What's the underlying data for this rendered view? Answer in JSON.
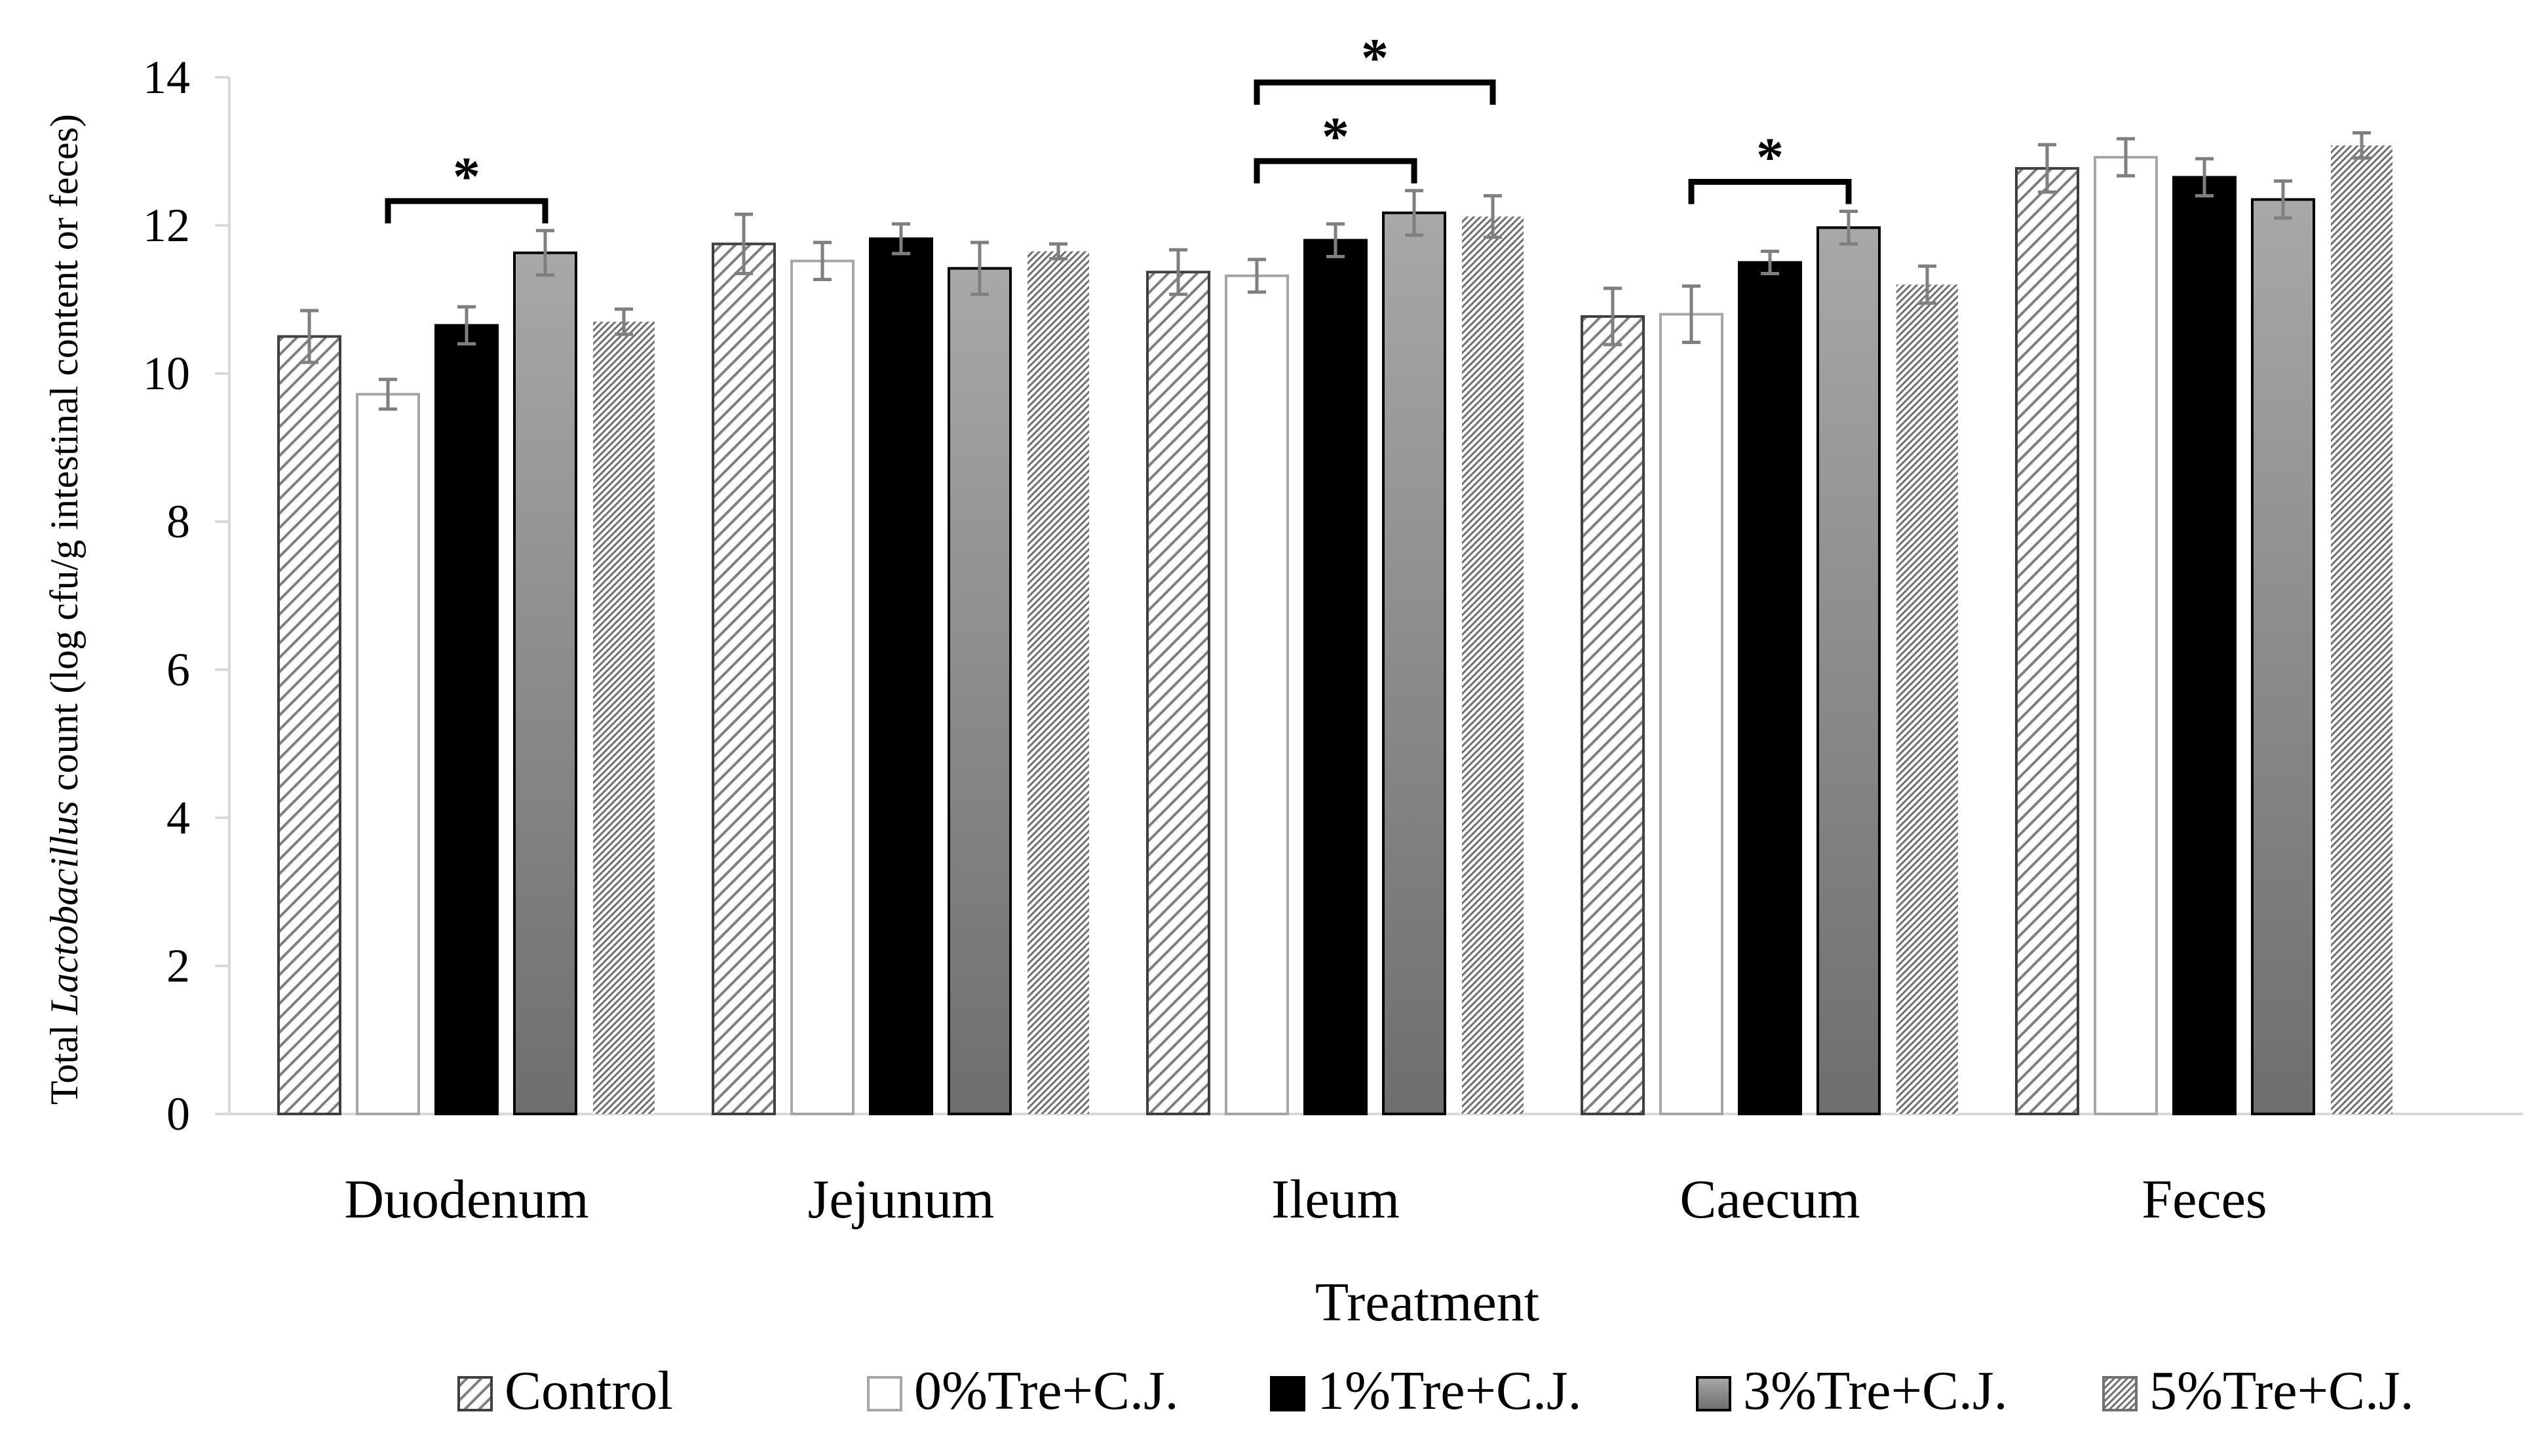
{
  "chart_data": {
    "type": "bar",
    "categories": [
      "Duodenum",
      "Jejunum",
      "Ileum",
      "Caecum",
      "Feces"
    ],
    "series": [
      {
        "name": "Control",
        "pattern": "hatch-wide",
        "values": [
          10.5,
          11.75,
          11.37,
          10.77,
          12.77
        ],
        "errors": [
          0.35,
          0.4,
          0.3,
          0.38,
          0.32
        ]
      },
      {
        "name": "0%Tre+C.J.",
        "pattern": "white",
        "values": [
          9.72,
          11.52,
          11.32,
          10.8,
          12.92
        ],
        "errors": [
          0.2,
          0.25,
          0.22,
          0.38,
          0.25
        ]
      },
      {
        "name": "1%Tre+C.J.",
        "pattern": "black",
        "values": [
          10.65,
          11.82,
          11.8,
          11.5,
          12.65
        ],
        "errors": [
          0.25,
          0.2,
          0.22,
          0.15,
          0.25
        ]
      },
      {
        "name": "3%Tre+C.J.",
        "pattern": "gradient-gray",
        "values": [
          11.63,
          11.42,
          12.17,
          11.97,
          12.35
        ],
        "errors": [
          0.3,
          0.35,
          0.3,
          0.22,
          0.25
        ]
      },
      {
        "name": "5%Tre+C.J.",
        "pattern": "hatch-fine",
        "values": [
          10.7,
          11.65,
          12.12,
          11.2,
          13.08
        ],
        "errors": [
          0.17,
          0.1,
          0.28,
          0.25,
          0.17
        ]
      }
    ],
    "significance": [
      {
        "category": "Duodenum",
        "from_series": 1,
        "to_series": 3,
        "level": 0,
        "label": "*"
      },
      {
        "category": "Ileum",
        "from_series": 1,
        "to_series": 3,
        "level": 0,
        "label": "*"
      },
      {
        "category": "Ileum",
        "from_series": 1,
        "to_series": 4,
        "level": 1,
        "label": "*"
      },
      {
        "category": "Caecum",
        "from_series": 1,
        "to_series": 3,
        "level": 0,
        "label": "*"
      }
    ],
    "title": "",
    "xlabel": "Treatment",
    "ylabel_parts": [
      {
        "text": "Total ",
        "italic": false
      },
      {
        "text": "Lactobacillus",
        "italic": true
      },
      {
        "text": " count (log cfu/g intestinal content or feces)",
        "italic": false
      }
    ],
    "ylim": [
      0,
      14
    ],
    "yticks": [
      0,
      2,
      4,
      6,
      8,
      10,
      12,
      14
    ],
    "grid": false,
    "legend_position": "bottom",
    "colors": {
      "axis": "#d9d9d9",
      "bar_edge": "#000000",
      "white_edge": "#a6a6a6",
      "error_bar": "#7f7f7f",
      "black_fill": "#000000"
    }
  }
}
